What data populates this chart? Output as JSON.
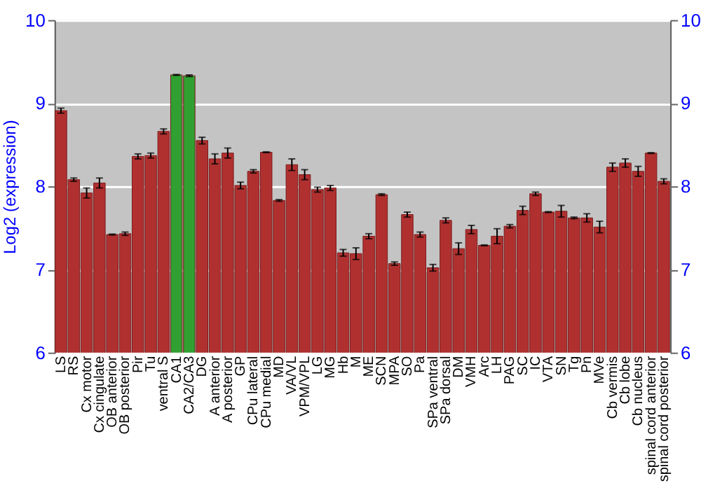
{
  "chart_data": {
    "type": "bar",
    "ylabel": "Log2 (expression)",
    "categories": [
      "LS",
      "RS",
      "Cx motor",
      "Cx cingulate",
      "OB anterior",
      "OB posterior",
      "Pir",
      "Tu",
      "ventral S",
      "CA1",
      "CA2/CA3",
      "DG",
      "A anterior",
      "A posterior",
      "GP",
      "CPu lateral",
      "CPu medial",
      "MD",
      "VA/VL",
      "VPM/VPL",
      "LG",
      "MG",
      "Hb",
      "M",
      "ME",
      "SCN",
      "MPA",
      "SO",
      "Pa",
      "SPa ventral",
      "SPa dorsal",
      "DM",
      "VMH",
      "Arc",
      "LH",
      "PAG",
      "SC",
      "IC",
      "VTA",
      "SN",
      "Tg",
      "Pn",
      "MVe",
      "Cb vermis",
      "Cb lobe",
      "Cb nucleus",
      "spinal cord anterior",
      "spinal cord posterior"
    ],
    "values": [
      8.91,
      8.08,
      7.92,
      8.04,
      7.42,
      7.43,
      8.36,
      8.37,
      8.66,
      9.34,
      9.33,
      8.55,
      8.33,
      8.4,
      8.01,
      8.18,
      8.41,
      7.83,
      8.26,
      8.14,
      7.96,
      7.98,
      7.2,
      7.19,
      7.4,
      7.9,
      7.07,
      7.66,
      7.42,
      7.02,
      7.59,
      7.25,
      7.48,
      7.29,
      7.4,
      7.52,
      7.71,
      7.91,
      7.69,
      7.7,
      7.62,
      7.62,
      7.51,
      8.23,
      8.28,
      8.18,
      8.4,
      8.06
    ],
    "errors": [
      0.03,
      0.02,
      0.06,
      0.06,
      0.005,
      0.02,
      0.03,
      0.03,
      0.03,
      0.005,
      0.01,
      0.04,
      0.06,
      0.06,
      0.04,
      0.02,
      0.005,
      0.01,
      0.07,
      0.06,
      0.03,
      0.03,
      0.04,
      0.07,
      0.03,
      0.01,
      0.02,
      0.03,
      0.03,
      0.04,
      0.03,
      0.07,
      0.05,
      0.005,
      0.09,
      0.02,
      0.05,
      0.02,
      0.005,
      0.07,
      0.01,
      0.05,
      0.07,
      0.05,
      0.05,
      0.06,
      0.005,
      0.03
    ],
    "colors": [
      "#b03030",
      "#b03030",
      "#b03030",
      "#b03030",
      "#b03030",
      "#b03030",
      "#b03030",
      "#b03030",
      "#b03030",
      "#30a030",
      "#30a030",
      "#b03030",
      "#b03030",
      "#b03030",
      "#b03030",
      "#b03030",
      "#b03030",
      "#b03030",
      "#b03030",
      "#b03030",
      "#b03030",
      "#b03030",
      "#b03030",
      "#b03030",
      "#b03030",
      "#b03030",
      "#b03030",
      "#b03030",
      "#b03030",
      "#b03030",
      "#b03030",
      "#b03030",
      "#b03030",
      "#b03030",
      "#b03030",
      "#b03030",
      "#b03030",
      "#b03030",
      "#b03030",
      "#b03030",
      "#b03030",
      "#b03030",
      "#b03030",
      "#b03030",
      "#b03030",
      "#b03030",
      "#b03030",
      "#b03030"
    ],
    "ylim": [
      6,
      10
    ],
    "yticks": [
      6,
      7,
      8,
      9,
      10
    ],
    "y2lim": [
      6,
      10
    ],
    "y2ticks": [
      6,
      7,
      8,
      9,
      10
    ],
    "grid": "y"
  }
}
